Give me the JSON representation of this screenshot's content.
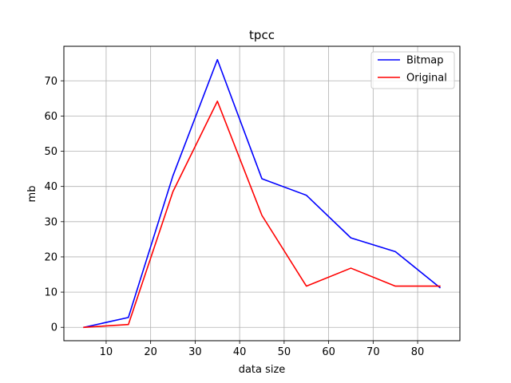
{
  "chart_data": {
    "type": "line",
    "title": "tpcc",
    "xlabel": "data size",
    "ylabel": "mb",
    "x": [
      5,
      15,
      25,
      35,
      45,
      55,
      65,
      75,
      85
    ],
    "series": [
      {
        "name": "Bitmap",
        "color": "#0000ff",
        "values": [
          0,
          2.8,
          43,
          76,
          42.2,
          37.5,
          25.4,
          21.5,
          11.3
        ]
      },
      {
        "name": "Original",
        "color": "#ff0000",
        "values": [
          0,
          0.8,
          38.5,
          64.2,
          31.8,
          11.7,
          16.8,
          11.7,
          11.7
        ]
      }
    ],
    "xlim": [
      0.5,
      89.5
    ],
    "ylim": [
      -3.8,
      79.8
    ],
    "xticks": [
      "10",
      "20",
      "30",
      "40",
      "50",
      "60",
      "70",
      "80"
    ],
    "yticks": [
      "0",
      "10",
      "20",
      "30",
      "40",
      "50",
      "60",
      "70"
    ],
    "grid": true,
    "legend_position": "top-right"
  }
}
